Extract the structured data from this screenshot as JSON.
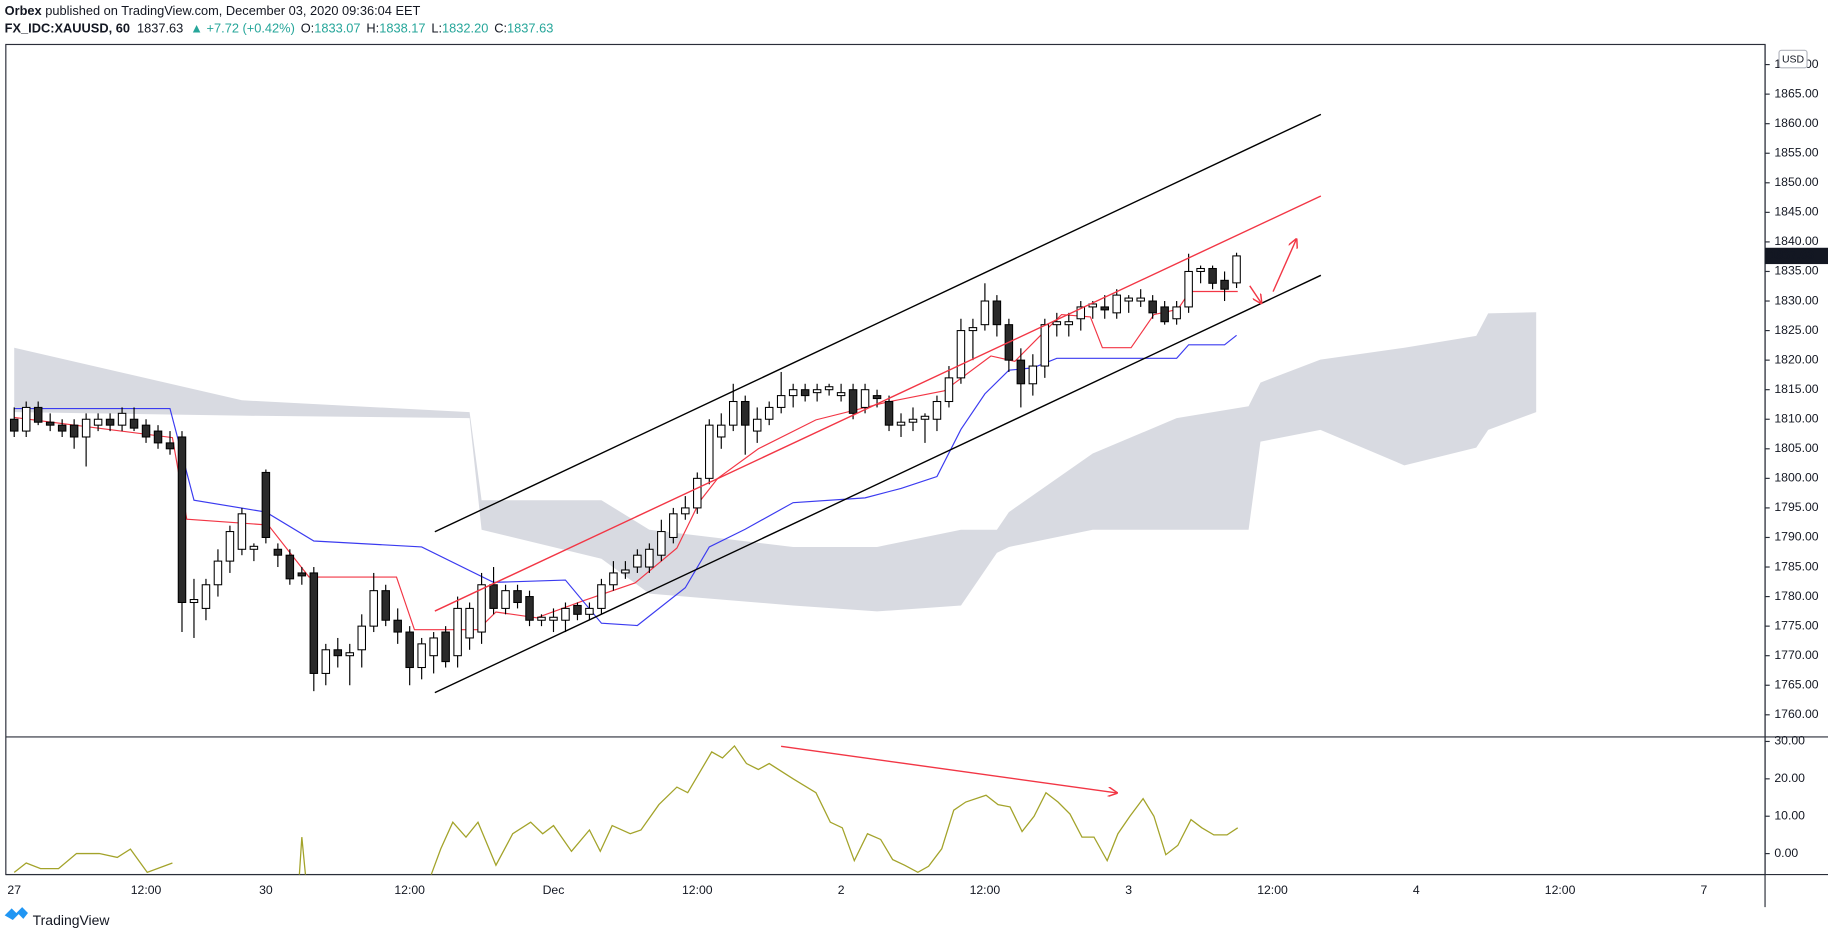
{
  "header": {
    "author": "Orbex",
    "published": " published on TradingView.com, December 03, 2020 09:36:04 EET",
    "symbol": "FX_IDC:XAUUSD, 60",
    "price": "1837.63",
    "change": "▲ +7.72 (+0.42%)",
    "ohlc": [
      {
        "key": "O:",
        "value": "1833.07"
      },
      {
        "key": "H:",
        "value": "1838.17"
      },
      {
        "key": "L:",
        "value": "1832.20"
      },
      {
        "key": "C:",
        "value": "1837.63"
      }
    ],
    "currency": "USD"
  },
  "footer": {
    "brand": "TradingView"
  },
  "chart_data": [
    {
      "type": "candlestick",
      "up_color": "#ffffff",
      "down_color": "#2a2a2a",
      "border_color": "#000000",
      "xlim": [
        -0.7,
        146.1
      ],
      "ylim": [
        1756.25,
        1873.4
      ],
      "xticks": [
        {
          "value": 0,
          "label": "27"
        },
        {
          "value": 11,
          "label": "12:00"
        },
        {
          "value": 21,
          "label": "30"
        },
        {
          "value": 33,
          "label": "12:00"
        },
        {
          "value": 45,
          "label": "Dec"
        },
        {
          "value": 57,
          "label": "12:00"
        },
        {
          "value": 69,
          "label": "2"
        },
        {
          "value": 81,
          "label": "12:00"
        },
        {
          "value": 93,
          "label": "3"
        },
        {
          "value": 105,
          "label": "12:00"
        },
        {
          "value": 117,
          "label": "4"
        },
        {
          "value": 129,
          "label": "12:00"
        },
        {
          "value": 141,
          "label": "7"
        }
      ],
      "yticks": [
        {
          "value": 1760,
          "label": "1760.00"
        },
        {
          "value": 1765,
          "label": "1765.00"
        },
        {
          "value": 1770,
          "label": "1770.00"
        },
        {
          "value": 1775,
          "label": "1775.00"
        },
        {
          "value": 1780,
          "label": "1780.00"
        },
        {
          "value": 1785,
          "label": "1785.00"
        },
        {
          "value": 1790,
          "label": "1790.00"
        },
        {
          "value": 1795,
          "label": "1795.00"
        },
        {
          "value": 1800,
          "label": "1800.00"
        },
        {
          "value": 1805,
          "label": "1805.00"
        },
        {
          "value": 1810,
          "label": "1810.00"
        },
        {
          "value": 1815,
          "label": "1815.00"
        },
        {
          "value": 1820,
          "label": "1820.00"
        },
        {
          "value": 1825,
          "label": "1825.00"
        },
        {
          "value": 1830,
          "label": "1830.00"
        },
        {
          "value": 1835,
          "label": "1835.00"
        },
        {
          "value": 1840,
          "label": "1840.00"
        },
        {
          "value": 1845,
          "label": "1845.00"
        },
        {
          "value": 1850,
          "label": "1850.00"
        },
        {
          "value": 1855,
          "label": "1855.00"
        },
        {
          "value": 1860,
          "label": "1860.00"
        },
        {
          "value": 1865,
          "label": "1865.00"
        },
        {
          "value": 1870,
          "label": "1870.00"
        }
      ],
      "x": [
        0,
        1,
        2,
        3,
        4,
        5,
        6,
        7,
        8,
        9,
        10,
        11,
        12,
        13,
        14,
        15,
        16,
        17,
        18,
        19,
        20,
        21,
        22,
        23,
        24,
        25,
        26,
        27,
        28,
        29,
        30,
        31,
        32,
        33,
        34,
        35,
        36,
        37,
        38,
        39,
        40,
        41,
        42,
        43,
        44,
        45,
        46,
        47,
        48,
        49,
        50,
        51,
        52,
        53,
        54,
        55,
        56,
        57,
        58,
        59,
        60,
        61,
        62,
        63,
        64,
        65,
        66,
        67,
        68,
        69,
        70,
        71,
        72,
        73,
        74,
        75,
        76,
        77,
        78,
        79,
        80,
        81,
        82,
        83,
        84,
        85,
        86,
        87,
        88,
        89,
        90,
        91,
        92,
        93,
        94,
        95,
        96,
        97,
        98,
        99,
        100,
        101,
        102
      ],
      "open": [
        1810,
        1808,
        1812,
        1809.5,
        1809,
        1809,
        1807,
        1809,
        1810,
        1809,
        1810,
        1809,
        1808,
        1806,
        1807,
        1779,
        1778,
        1782,
        1786,
        1788,
        1788,
        1801,
        1788,
        1787,
        1784,
        1784,
        1767,
        1771,
        1770,
        1771,
        1775,
        1781,
        1776,
        1774,
        1768,
        1770,
        1774,
        1770,
        1773,
        1774,
        1782,
        1778,
        1781,
        1780,
        1776,
        1776,
        1776,
        1778.5,
        1777,
        1778,
        1782,
        1784,
        1785,
        1785,
        1787,
        1790,
        1794,
        1795,
        1800,
        1807,
        1809,
        1813,
        1808,
        1810,
        1812,
        1814,
        1815,
        1814.5,
        1815,
        1814,
        1815,
        1812,
        1814,
        1813,
        1809,
        1809.5,
        1810,
        1810,
        1813,
        1817,
        1825,
        1826,
        1830,
        1826,
        1820,
        1816,
        1819,
        1826,
        1826,
        1827,
        1829,
        1829,
        1828,
        1830,
        1830,
        1830,
        1829,
        1827,
        1829,
        1835,
        1835.5,
        1833.5,
        1833.07
      ],
      "high": [
        1812,
        1813,
        1813,
        1811,
        1810,
        1810,
        1811,
        1811,
        1811,
        1812,
        1812,
        1810,
        1809,
        1808,
        1808,
        1783,
        1783,
        1788,
        1792,
        1795,
        1789,
        1801.5,
        1789,
        1788,
        1785,
        1785,
        1772,
        1773,
        1772,
        1777,
        1784,
        1782,
        1778,
        1775,
        1773,
        1774,
        1775,
        1780,
        1779,
        1784,
        1785,
        1782,
        1782,
        1781,
        1777,
        1778,
        1779,
        1779,
        1779,
        1783,
        1786,
        1786,
        1788,
        1789,
        1793,
        1795,
        1797,
        1801,
        1810,
        1811,
        1816,
        1814,
        1812,
        1813,
        1818,
        1816,
        1816,
        1816,
        1816,
        1816,
        1816,
        1816,
        1815,
        1814,
        1811,
        1812,
        1811,
        1814,
        1819,
        1827,
        1827,
        1833,
        1831,
        1827,
        1822,
        1821,
        1827,
        1828,
        1828,
        1830,
        1830,
        1831,
        1832,
        1831,
        1832,
        1831,
        1830,
        1830,
        1838,
        1836,
        1836,
        1835,
        1838.17
      ],
      "low": [
        1807,
        1807,
        1809,
        1808,
        1807,
        1805,
        1802,
        1808,
        1808,
        1808,
        1808,
        1806,
        1805,
        1804,
        1774,
        1773,
        1776,
        1780,
        1784,
        1787,
        1786,
        1789,
        1785,
        1782,
        1782,
        1764,
        1765,
        1768,
        1765,
        1768,
        1774,
        1775,
        1772,
        1765,
        1766,
        1767,
        1768,
        1768,
        1771,
        1772,
        1777,
        1777,
        1778,
        1775,
        1775,
        1774,
        1774,
        1776,
        1776,
        1777,
        1781,
        1783,
        1784,
        1784,
        1786,
        1789,
        1793,
        1794,
        1799,
        1805,
        1808,
        1804,
        1806,
        1809,
        1811,
        1812,
        1813,
        1813,
        1814,
        1813,
        1810,
        1811,
        1812,
        1808,
        1807,
        1808,
        1806,
        1808,
        1812,
        1816,
        1820,
        1825,
        1824,
        1818,
        1812,
        1814,
        1817,
        1824,
        1824,
        1825,
        1827,
        1827,
        1827,
        1828,
        1829,
        1827,
        1826,
        1826,
        1828,
        1833,
        1832,
        1830,
        1832.2
      ],
      "close": [
        1808,
        1812,
        1809.5,
        1809,
        1808,
        1807,
        1810,
        1810,
        1809,
        1811,
        1808.5,
        1807,
        1806,
        1805,
        1779,
        1779.5,
        1782,
        1786,
        1791,
        1794,
        1788.5,
        1790,
        1787,
        1783,
        1783.5,
        1767,
        1771,
        1770,
        1770.5,
        1775,
        1781,
        1776,
        1774,
        1768,
        1772,
        1773,
        1769,
        1778,
        1778,
        1782,
        1778,
        1781,
        1779,
        1776,
        1776.5,
        1776.5,
        1778,
        1777,
        1778,
        1782,
        1784,
        1784.5,
        1787,
        1788,
        1791,
        1794,
        1795,
        1800,
        1809,
        1809,
        1813,
        1809,
        1810,
        1812,
        1814,
        1815,
        1814,
        1815,
        1815.5,
        1814.5,
        1811,
        1815,
        1813.5,
        1809,
        1809.5,
        1810,
        1810.5,
        1813,
        1817,
        1825,
        1825.5,
        1830,
        1826,
        1820,
        1816,
        1819,
        1826,
        1826.5,
        1826.5,
        1829,
        1829.5,
        1828.5,
        1831,
        1830.5,
        1830.5,
        1828,
        1826.5,
        1829,
        1835,
        1835.5,
        1833,
        1832,
        1837.63
      ],
      "cloud": {
        "color": "#d1d4dc",
        "x": [
          0,
          19,
          38,
          39,
          49,
          53,
          65,
          72,
          79,
          82,
          83,
          90,
          97,
          103,
          104,
          109,
          116,
          122,
          123,
          127
        ],
        "upper": [
          1822.1,
          1813.2,
          1811.2,
          1796.3,
          1796.3,
          1791.3,
          1788.4,
          1788.4,
          1791.3,
          1791.3,
          1794.3,
          1804.2,
          1810.2,
          1812.2,
          1816.2,
          1820.1,
          1822.1,
          1824.1,
          1827.9,
          1828.1
        ],
        "lower": [
          1811.2,
          1810.6,
          1810.2,
          1791.3,
          1786.4,
          1780.5,
          1778.5,
          1777.5,
          1778.5,
          1787.4,
          1788.4,
          1791.3,
          1791.3,
          1791.3,
          1806.2,
          1808.2,
          1802.2,
          1805.2,
          1808.2,
          1811.2
        ]
      },
      "lines": [
        {
          "color": "#f23645",
          "x": [
            0,
            13.2,
            14.4,
            21.2,
            24.6,
            31.9,
            33.4,
            38.7,
            40.2,
            43.6,
            47.5,
            51.8,
            55.3,
            57.2,
            58.7,
            62.1,
            66.9,
            72.8,
            77.6,
            81.5,
            83.5,
            85.9,
            87.4,
            89.8,
            90.8,
            93.2,
            95.1,
            97.1,
            98.1,
            102.1
          ],
          "values": [
            1810.3,
            1806.9,
            1793.1,
            1792.1,
            1783.3,
            1783.3,
            1774.4,
            1774.4,
            1777.4,
            1776.4,
            1779.3,
            1782.3,
            1788.2,
            1796.1,
            1800.0,
            1805.0,
            1809.9,
            1812.9,
            1814.8,
            1820.7,
            1819.8,
            1824.7,
            1827.7,
            1827.3,
            1822.1,
            1822.1,
            1827.7,
            1828.6,
            1831.6,
            1831.6
          ]
        },
        {
          "color": "#3b3bf0",
          "x": [
            0,
            13,
            15,
            21,
            25,
            34,
            40,
            46,
            49,
            52,
            56,
            58,
            61,
            65,
            71,
            74,
            77,
            79,
            81,
            83,
            85,
            87,
            97,
            98,
            101,
            102
          ],
          "values": [
            1811.8,
            1811.8,
            1796.3,
            1794.3,
            1789.4,
            1788.4,
            1782.4,
            1782.8,
            1775.5,
            1775.1,
            1781.5,
            1788.4,
            1791.4,
            1795.9,
            1796.7,
            1798.3,
            1800.3,
            1808.3,
            1814.3,
            1818.3,
            1818.7,
            1820.3,
            1820.3,
            1822.6,
            1822.6,
            1824.2
          ]
        }
      ]
    },
    {
      "type": "line",
      "ylim": [
        -5.6,
        31.2
      ],
      "yticks": [
        {
          "value": 0,
          "label": "0.00"
        },
        {
          "value": 10,
          "label": "10.00"
        },
        {
          "value": 20,
          "label": "20.00"
        },
        {
          "value": 30,
          "label": "30.00"
        }
      ],
      "series": [
        {
          "color": "#a3a32a",
          "x": [
            0,
            1,
            2.2,
            3.7,
            5.2,
            7.1,
            8.6,
            9.7,
            11.1,
            13.2,
            18,
            23.8,
            24,
            24.3,
            30,
            34.8,
            35.6,
            36.6,
            37.7,
            38.7,
            40.2,
            41.6,
            43.1,
            44.1,
            45.0,
            46.5,
            48.0,
            48.9,
            49.9,
            51.4,
            52.3,
            53.8,
            55.3,
            56.2,
            58.2,
            59.1,
            60.1,
            61.1,
            62.1,
            63.0,
            65.0,
            66.9,
            68.1,
            69.1,
            70.1,
            71.2,
            72.3,
            73.3,
            74.3,
            75.4,
            76.3,
            77.4,
            78.4,
            79.4,
            81.1,
            82.1,
            83.1,
            84.1,
            85.1,
            86.1,
            87.1,
            88.1,
            89.1,
            90.1,
            91.2,
            92.1,
            93.1,
            94.2,
            95.1,
            96.1,
            97.1,
            98.2,
            99.1,
            100.1,
            101.2,
            102.1
          ],
          "values": [
            -5,
            -2.5,
            -4,
            -4,
            0,
            0,
            -1,
            1.2,
            -5,
            -2.5,
            null,
            -5.6,
            4.4,
            -5.6,
            null,
            -5.6,
            1.3,
            8.4,
            4.4,
            8.4,
            -3.1,
            5.3,
            8.4,
            5.3,
            7.5,
            0.6,
            6.3,
            0.6,
            7.5,
            5.3,
            6.3,
            13.1,
            17.8,
            16.3,
            27.2,
            25.6,
            28.8,
            24.1,
            22.5,
            24.1,
            20,
            16.3,
            8.4,
            6.9,
            -1.9,
            5.3,
            3.8,
            -1.6,
            -3.1,
            -5,
            -3.4,
            1.3,
            11.6,
            13.8,
            15.6,
            13.1,
            12.5,
            5.9,
            10,
            16.3,
            13.8,
            10.6,
            4.4,
            4.4,
            -1.9,
            5.3,
            10,
            14.7,
            10,
            -0.3,
            2.2,
            9.1,
            6.9,
            5,
            5,
            6.9
          ]
        }
      ]
    }
  ]
}
